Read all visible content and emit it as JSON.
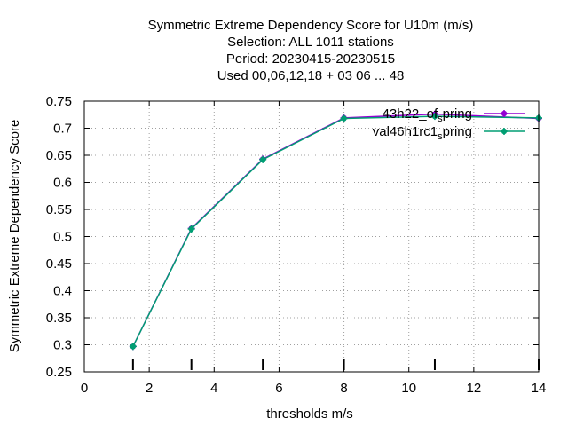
{
  "chart_data": {
    "type": "line",
    "title_lines": [
      "Symmetric Extreme Dependency Score  for U10m (m/s)",
      "Selection: ALL   1011 stations",
      "Period: 20230415-20230515",
      "Used  00,06,12,18  + 03 06 ... 48"
    ],
    "xlabel": "thresholds m/s",
    "ylabel": "Symmetric Extreme Dependency Score",
    "xlim": [
      0,
      14
    ],
    "ylim": [
      0.25,
      0.75
    ],
    "xticks": [
      "0",
      "2",
      "4",
      "6",
      "8",
      "10",
      "12",
      "14"
    ],
    "yticks": [
      "0.25",
      "0.3",
      "0.35",
      "0.4",
      "0.45",
      "0.5",
      "0.55",
      "0.6",
      "0.65",
      "0.7",
      "0.75"
    ],
    "grid": true,
    "legend_position": "top-right",
    "threshold_marks": [
      1.5,
      3.3,
      5.5,
      8,
      10.8,
      14
    ],
    "series": [
      {
        "name_main": "43h22_of",
        "name_sub": "s",
        "name_tail": "pring",
        "color": "#9400d3",
        "x": [
          1.5,
          3.3,
          5.5,
          8,
          10.8,
          14
        ],
        "y": [
          0.297,
          0.515,
          0.643,
          0.719,
          0.726,
          0.718
        ]
      },
      {
        "name_main": "val46h1rc1",
        "name_sub": "s",
        "name_tail": "pring",
        "color": "#009e73",
        "x": [
          1.5,
          3.3,
          5.5,
          8,
          10.8,
          14
        ],
        "y": [
          0.297,
          0.514,
          0.642,
          0.718,
          0.722,
          0.719
        ]
      }
    ]
  }
}
